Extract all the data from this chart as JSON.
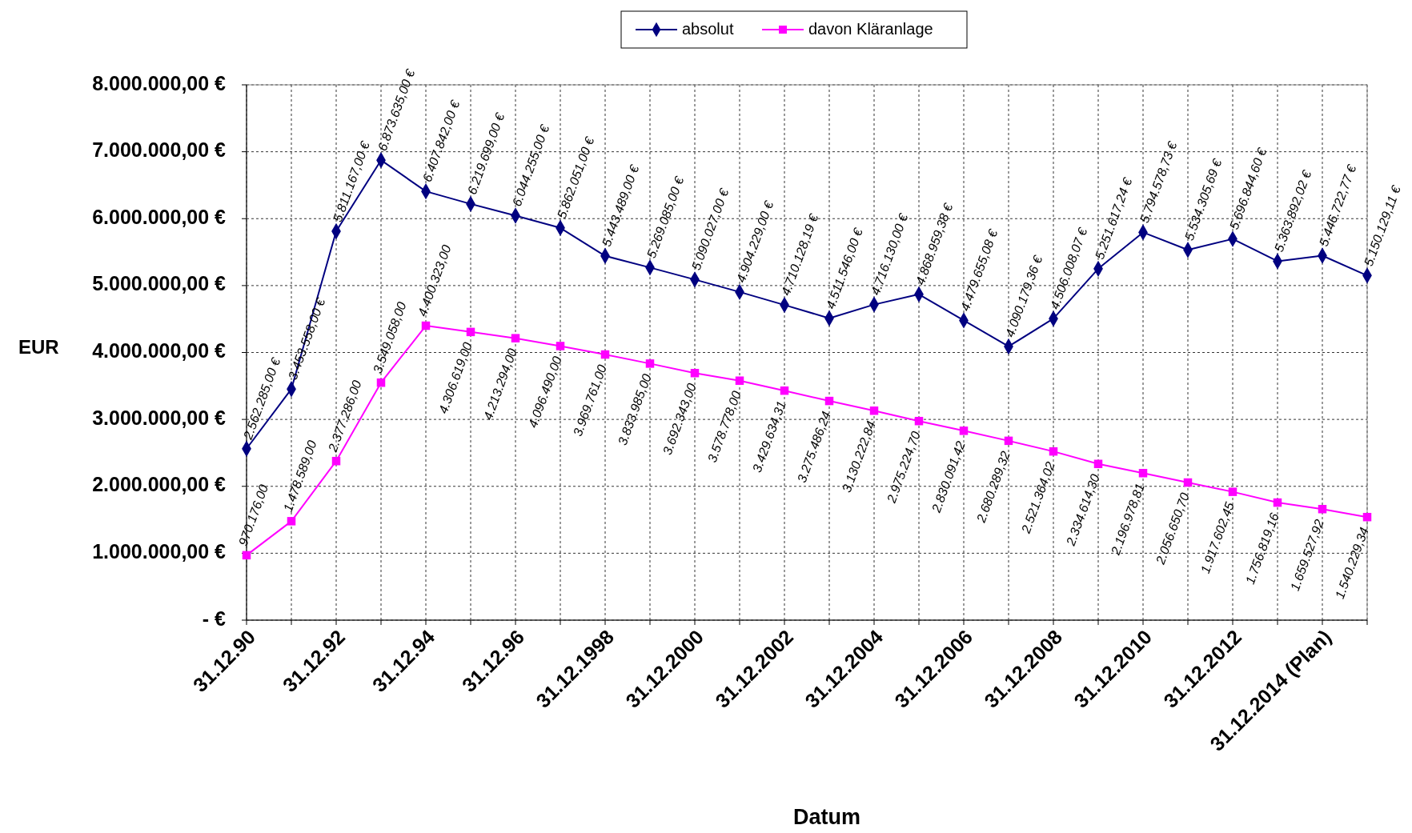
{
  "chart_data": {
    "type": "line",
    "xlabel": "Datum",
    "ylabel": "EUR",
    "categories": [
      "31.12.90",
      null,
      "31.12.92",
      null,
      "31.12.94",
      null,
      "31.12.96",
      null,
      "31.12.1998",
      null,
      "31.12.2000",
      null,
      "31.12.2002",
      null,
      "31.12.2004",
      null,
      "31.12.2006",
      null,
      "31.12.2008",
      null,
      "31.12.2010",
      null,
      "31.12.2012",
      null,
      "31.12.2014 (Plan)",
      null
    ],
    "ylim": [
      0,
      8000000
    ],
    "yticks": [
      {
        "value": 0,
        "label": "-   €"
      },
      {
        "value": 1000000,
        "label": "1.000.000,00 €"
      },
      {
        "value": 2000000,
        "label": "2.000.000,00 €"
      },
      {
        "value": 3000000,
        "label": "3.000.000,00 €"
      },
      {
        "value": 4000000,
        "label": "4.000.000,00 €"
      },
      {
        "value": 5000000,
        "label": "5.000.000,00 €"
      },
      {
        "value": 6000000,
        "label": "6.000.000,00 €"
      },
      {
        "value": 7000000,
        "label": "7.000.000,00 €"
      },
      {
        "value": 8000000,
        "label": "8.000.000,00 €"
      }
    ],
    "grid": true,
    "legend": "top",
    "line_style": "solid",
    "series": [
      {
        "name": "absolut",
        "color": "#000080",
        "marker": "diamond",
        "values": [
          2562285,
          3453558,
          5811167,
          6873635,
          6407842,
          6219699,
          6044255,
          5862051,
          5443489,
          5269085,
          5090027,
          4904229,
          4710128.19,
          4511546,
          4716130,
          4868959.38,
          4479655.08,
          4090179.36,
          4506008.07,
          5251617.24,
          5794578.73,
          5534305.69,
          5696844.6,
          5363892.02,
          5446722.77,
          5150129.11
        ],
        "value_labels": [
          "2.562.285,00 €",
          "3.453.558,00 €",
          "5.811.167,00 €",
          "6.873.635,00 €",
          "6.407.842,00 €",
          "6.219.699,00 €",
          "6.044.255,00 €",
          "5.862.051,00 €",
          "5.443.489,00 €",
          "5.269.085,00 €",
          "5.090.027,00 €",
          "4.904.229,00 €",
          "4.710.128,19 €",
          "4.511.546,00 €",
          "4.716.130,00 €",
          "4.868.959,38 €",
          "4.479.655,08 €",
          "4.090.179,36 €",
          "4.506.008,07 €",
          "5.251.617,24 €",
          "5.794.578,73 €",
          "5.534.305,69 €",
          "5.696.844,60 €",
          "5.363.892,02 €",
          "5.446.722,77 €",
          "5.150.129,11 €"
        ]
      },
      {
        "name": "davon Kläranlage",
        "color": "#ff00ff",
        "marker": "square",
        "values": [
          970176,
          1478589,
          2377286,
          3549058,
          4400323,
          4306619,
          4213294,
          4096490,
          3969761,
          3833985,
          3692343,
          3578778,
          3429634.31,
          3275486.24,
          3130222.84,
          2975224.7,
          2830091.42,
          2680289.32,
          2521364.02,
          2334614.3,
          2196978.81,
          2056650.7,
          1917602.45,
          1756819.16,
          1659527.92,
          1540229.34
        ],
        "value_labels": [
          "970.176,00",
          "1.478.589,00",
          "2.377.286,00",
          "3.549.058,00",
          "4.400.323,00",
          "4.306.619,00",
          "4.213.294,00",
          "4.096.490,00",
          "3.969.761,00",
          "3.833.985,00",
          "3.692.343,00",
          "3.578.778,00",
          "3.429.634,31",
          "3.275.486,24",
          "3.130.222,84",
          "2.975.224,70",
          "2.830.091,42",
          "2.680.289,32",
          "2.521.364,02",
          "2.334.614,30",
          "2.196.978,81",
          "2.056.650,70",
          "1.917.602,45",
          "1.756.819,16",
          "1.659.527,92",
          "1.540.229,34"
        ]
      }
    ]
  }
}
